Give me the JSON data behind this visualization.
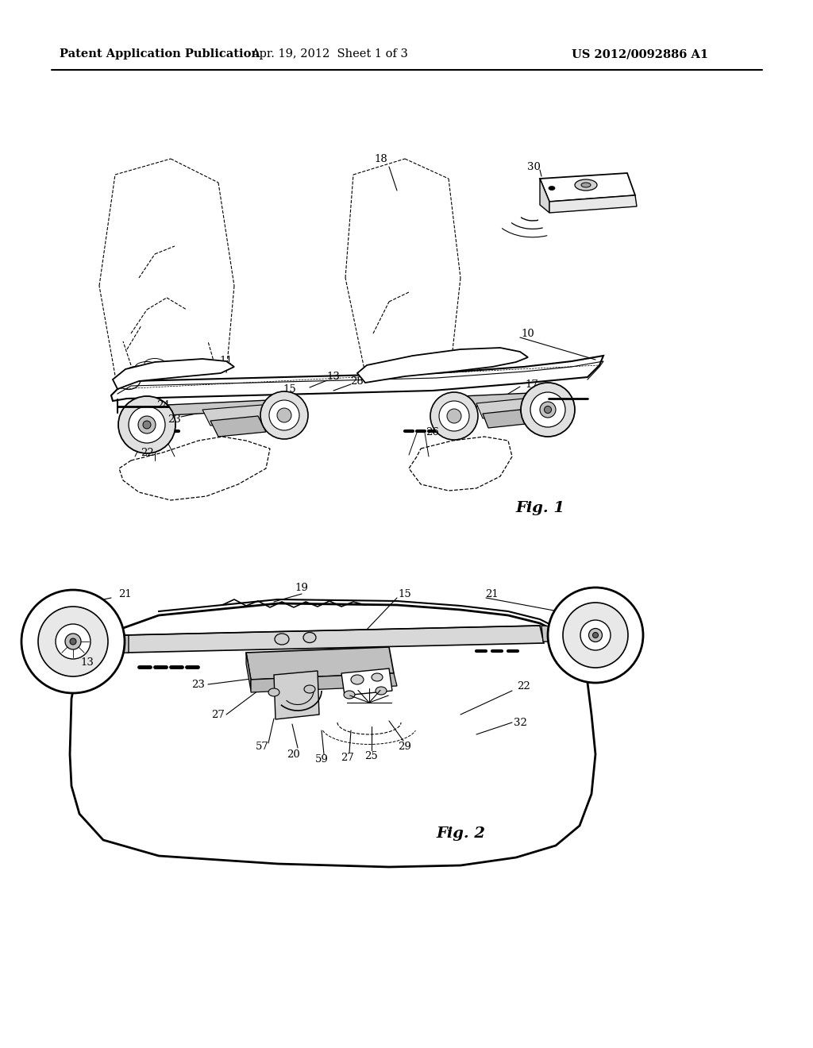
{
  "background_color": "#ffffff",
  "fig_width": 10.24,
  "fig_height": 13.2,
  "dpi": 100,
  "header_text_left": "Patent Application Publication",
  "header_text_mid": "Apr. 19, 2012  Sheet 1 of 3",
  "header_text_right": "US 2012/0092886 A1",
  "header_fontsize": 10.5,
  "fig1_label": "Fig. 1",
  "fig2_label": "Fig. 2",
  "label_fontsize": 9.5
}
